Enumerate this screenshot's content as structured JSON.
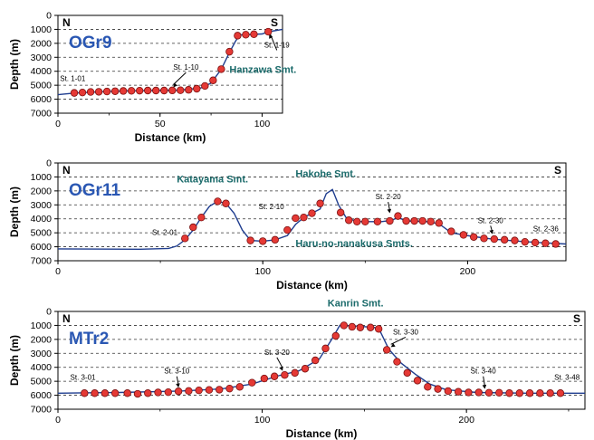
{
  "colors": {
    "profile_line": "#1f3d8f",
    "station_fill": "#e53935",
    "station_stroke": "#7a1010",
    "grid": "#333333",
    "section_label": "#2a57b3",
    "feature_label": "#1a6a6a",
    "axis": "#000000"
  },
  "chart_data": [
    {
      "type": "line",
      "section_label": "OGr9",
      "left_label": "N",
      "right_label": "S",
      "xlabel": "Distance (km)",
      "ylabel": "Depth (m)",
      "xlim": [
        0,
        110
      ],
      "ylim": [
        7000,
        0
      ],
      "xticks": [
        "0",
        "50",
        "100"
      ],
      "yticks": [
        "0",
        "1000",
        "2000",
        "3000",
        "4000",
        "5000",
        "6000",
        "7000"
      ],
      "grid_y": true,
      "profile": [
        [
          0,
          5680
        ],
        [
          8,
          5560
        ],
        [
          20,
          5470
        ],
        [
          35,
          5400
        ],
        [
          50,
          5380
        ],
        [
          60,
          5350
        ],
        [
          70,
          5200
        ],
        [
          75,
          4850
        ],
        [
          80,
          3850
        ],
        [
          84,
          2650
        ],
        [
          87,
          1850
        ],
        [
          89,
          1400
        ],
        [
          95,
          1360
        ],
        [
          100,
          1330
        ],
        [
          103,
          1170
        ],
        [
          106,
          1100
        ],
        [
          110,
          1000
        ]
      ],
      "stations": [
        [
          8,
          5550
        ],
        [
          12,
          5520
        ],
        [
          16,
          5480
        ],
        [
          20,
          5470
        ],
        [
          24,
          5450
        ],
        [
          28,
          5430
        ],
        [
          32,
          5410
        ],
        [
          36,
          5400
        ],
        [
          40,
          5390
        ],
        [
          44,
          5380
        ],
        [
          48,
          5380
        ],
        [
          52,
          5380
        ],
        [
          56,
          5370
        ],
        [
          60,
          5360
        ],
        [
          64,
          5330
        ],
        [
          68,
          5250
        ],
        [
          72,
          5050
        ],
        [
          76,
          4650
        ],
        [
          80,
          3850
        ],
        [
          84,
          2600
        ],
        [
          88,
          1450
        ],
        [
          92,
          1380
        ],
        [
          96,
          1350
        ],
        [
          103,
          1170
        ]
      ],
      "annotations": [
        {
          "text": "St. 1-01",
          "x": 1,
          "y": 4700,
          "arrow": false
        },
        {
          "text": "St. 1-10",
          "x": 56.5,
          "y": 3900,
          "arrow": true,
          "arrow_to": [
            56.5,
            5150
          ]
        },
        {
          "text": "St. 1-19",
          "x": 101,
          "y": 2300,
          "arrow": true,
          "arrow_to": [
            103.5,
            1350
          ]
        }
      ],
      "features": [
        {
          "text": "Hanzawa Smt.",
          "x": 84,
          "y": 4100
        }
      ]
    },
    {
      "type": "line",
      "section_label": "OGr11",
      "left_label": "N",
      "right_label": "S",
      "xlabel": "Distance (km)",
      "ylabel": "Depth (m)",
      "xlim": [
        0,
        248
      ],
      "ylim": [
        7000,
        0
      ],
      "xticks": [
        "0",
        "100",
        "200"
      ],
      "yticks": [
        "0",
        "1000",
        "2000",
        "3000",
        "4000",
        "5000",
        "6000",
        "7000"
      ],
      "grid_y": true,
      "profile": [
        [
          0,
          6150
        ],
        [
          40,
          6180
        ],
        [
          54,
          6120
        ],
        [
          58,
          5950
        ],
        [
          62,
          5500
        ],
        [
          66,
          4800
        ],
        [
          70,
          3900
        ],
        [
          74,
          3100
        ],
        [
          78,
          2750
        ],
        [
          82,
          2900
        ],
        [
          86,
          3600
        ],
        [
          90,
          4800
        ],
        [
          94,
          5550
        ],
        [
          100,
          5600
        ],
        [
          106,
          5500
        ],
        [
          112,
          5200
        ],
        [
          116,
          4400
        ],
        [
          120,
          3900
        ],
        [
          124,
          3600
        ],
        [
          128,
          3300
        ],
        [
          131,
          2200
        ],
        [
          134,
          1900
        ],
        [
          137,
          3000
        ],
        [
          141,
          4000
        ],
        [
          148,
          4200
        ],
        [
          158,
          4200
        ],
        [
          163,
          4100
        ],
        [
          166,
          3900
        ],
        [
          170,
          4150
        ],
        [
          180,
          4200
        ],
        [
          186,
          4350
        ],
        [
          192,
          5000
        ],
        [
          202,
          5250
        ],
        [
          212,
          5450
        ],
        [
          225,
          5600
        ],
        [
          235,
          5700
        ],
        [
          248,
          5800
        ]
      ],
      "stations": [
        [
          62,
          5400
        ],
        [
          66,
          4600
        ],
        [
          70,
          3900
        ],
        [
          78,
          2750
        ],
        [
          82,
          2900
        ],
        [
          94,
          5550
        ],
        [
          100,
          5600
        ],
        [
          106,
          5500
        ],
        [
          112,
          4800
        ],
        [
          116,
          3950
        ],
        [
          120,
          3900
        ],
        [
          124,
          3600
        ],
        [
          128,
          2900
        ],
        [
          138,
          3550
        ],
        [
          142,
          4100
        ],
        [
          146,
          4200
        ],
        [
          150,
          4200
        ],
        [
          156,
          4200
        ],
        [
          162,
          4150
        ],
        [
          166,
          3800
        ],
        [
          170,
          4150
        ],
        [
          174,
          4150
        ],
        [
          178,
          4150
        ],
        [
          182,
          4200
        ],
        [
          186,
          4300
        ],
        [
          192,
          4900
        ],
        [
          198,
          5150
        ],
        [
          203,
          5300
        ],
        [
          208,
          5400
        ],
        [
          213,
          5450
        ],
        [
          218,
          5500
        ],
        [
          223,
          5550
        ],
        [
          228,
          5650
        ],
        [
          233,
          5700
        ],
        [
          238,
          5750
        ],
        [
          243,
          5800
        ]
      ],
      "annotations": [
        {
          "text": "St. 2-01",
          "x": 46,
          "y": 5150,
          "arrow": false
        },
        {
          "text": "St. 2-10",
          "x": 98,
          "y": 3300,
          "arrow": false
        },
        {
          "text": "St. 2-20",
          "x": 155,
          "y": 2600,
          "arrow": true,
          "arrow_to": [
            162,
            3600
          ]
        },
        {
          "text": "St. 2-30",
          "x": 205,
          "y": 4300,
          "arrow": true,
          "arrow_to": [
            212,
            5100
          ]
        },
        {
          "text": "St. 2-36",
          "x": 232,
          "y": 4900,
          "arrow": false
        }
      ],
      "features": [
        {
          "text": "Katayama Smt.",
          "x": 58,
          "y": 1400
        },
        {
          "text": "Hakobe Smt.",
          "x": 116,
          "y": 1000
        },
        {
          "text": "Haru-no-nanakusa Smts.",
          "x": 116,
          "y": 6000
        }
      ]
    },
    {
      "type": "line",
      "section_label": "MTr2",
      "left_label": "N",
      "right_label": "S",
      "xlabel": "Distance (km)",
      "ylabel": "Depth (m)",
      "xlim": [
        0,
        258
      ],
      "ylim": [
        7000,
        0
      ],
      "xticks": [
        "0",
        "100",
        "200"
      ],
      "yticks": [
        "0",
        "1000",
        "2000",
        "3000",
        "4000",
        "5000",
        "6000",
        "7000"
      ],
      "grid_y": true,
      "profile": [
        [
          0,
          5850
        ],
        [
          12,
          5830
        ],
        [
          30,
          5800
        ],
        [
          60,
          5700
        ],
        [
          80,
          5550
        ],
        [
          95,
          5200
        ],
        [
          108,
          4600
        ],
        [
          118,
          4250
        ],
        [
          128,
          3400
        ],
        [
          134,
          2000
        ],
        [
          138,
          1000
        ],
        [
          146,
          1050
        ],
        [
          155,
          1150
        ],
        [
          158,
          1500
        ],
        [
          162,
          2700
        ],
        [
          168,
          3700
        ],
        [
          175,
          4500
        ],
        [
          182,
          5200
        ],
        [
          190,
          5600
        ],
        [
          205,
          5800
        ],
        [
          230,
          5850
        ],
        [
          258,
          5850
        ]
      ],
      "stations": [
        [
          13,
          5850
        ],
        [
          18,
          5850
        ],
        [
          23,
          5850
        ],
        [
          28,
          5850
        ],
        [
          34,
          5850
        ],
        [
          39,
          5900
        ],
        [
          44,
          5850
        ],
        [
          49,
          5800
        ],
        [
          54,
          5780
        ],
        [
          59,
          5720
        ],
        [
          64,
          5690
        ],
        [
          69,
          5650
        ],
        [
          74,
          5620
        ],
        [
          79,
          5600
        ],
        [
          84,
          5520
        ],
        [
          89,
          5400
        ],
        [
          95,
          5100
        ],
        [
          101,
          4800
        ],
        [
          106,
          4650
        ],
        [
          111,
          4550
        ],
        [
          116,
          4400
        ],
        [
          121,
          4100
        ],
        [
          126,
          3500
        ],
        [
          131,
          2650
        ],
        [
          136,
          1750
        ],
        [
          140,
          1000
        ],
        [
          144,
          1100
        ],
        [
          148,
          1150
        ],
        [
          153,
          1150
        ],
        [
          157,
          1250
        ],
        [
          161,
          2750
        ],
        [
          166,
          3600
        ],
        [
          171,
          4400
        ],
        [
          176,
          4950
        ],
        [
          181,
          5400
        ],
        [
          186,
          5550
        ],
        [
          191,
          5700
        ],
        [
          196,
          5750
        ],
        [
          201,
          5800
        ],
        [
          206,
          5800
        ],
        [
          211,
          5820
        ],
        [
          216,
          5820
        ],
        [
          221,
          5850
        ],
        [
          226,
          5850
        ],
        [
          231,
          5850
        ],
        [
          236,
          5850
        ],
        [
          241,
          5850
        ],
        [
          246,
          5850
        ]
      ],
      "annotations": [
        {
          "text": "St. 3-01",
          "x": 6,
          "y": 4900,
          "arrow": false
        },
        {
          "text": "St. 3-10",
          "x": 52,
          "y": 4450,
          "arrow": true,
          "arrow_to": [
            59,
            5450
          ]
        },
        {
          "text": "St. 3-20",
          "x": 101,
          "y": 3100,
          "arrow": true,
          "arrow_to": [
            110,
            4250
          ]
        },
        {
          "text": "St. 3-30",
          "x": 164,
          "y": 1650,
          "arrow": true,
          "arrow_to": [
            163,
            2550
          ]
        },
        {
          "text": "St. 3-40",
          "x": 202,
          "y": 4450,
          "arrow": true,
          "arrow_to": [
            209,
            5550
          ]
        },
        {
          "text": "St. 3-48",
          "x": 243,
          "y": 4900,
          "arrow": false
        }
      ],
      "features": [
        {
          "text": "Kanrin Smt.",
          "x": 132,
          "y": -350
        }
      ]
    }
  ]
}
